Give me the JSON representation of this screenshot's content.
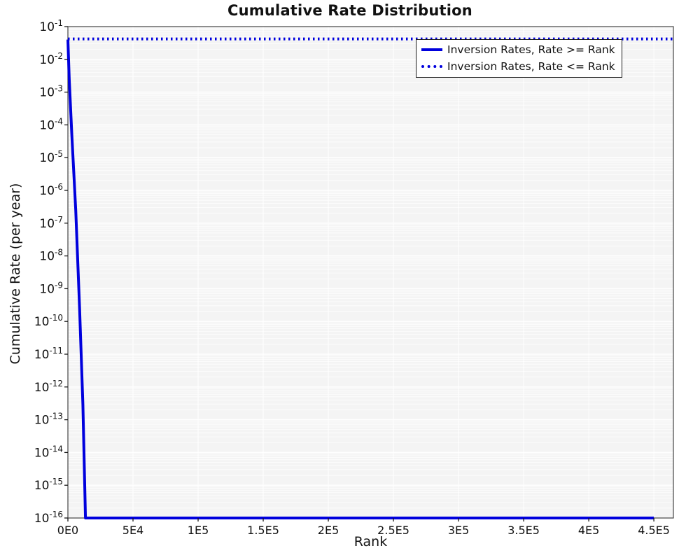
{
  "chart_data": {
    "type": "line",
    "title": "Cumulative Rate Distribution",
    "xlabel": "Rank",
    "ylabel": "Cumulative Rate (per year)",
    "x_axis": {
      "min": 0,
      "max": 465000,
      "ticks": [
        {
          "value": 0,
          "label": "0E0"
        },
        {
          "value": 50000,
          "label": "5E4"
        },
        {
          "value": 100000,
          "label": "1E5"
        },
        {
          "value": 150000,
          "label": "1.5E5"
        },
        {
          "value": 200000,
          "label": "2E5"
        },
        {
          "value": 250000,
          "label": "2.5E5"
        },
        {
          "value": 300000,
          "label": "3E5"
        },
        {
          "value": 350000,
          "label": "3.5E5"
        },
        {
          "value": 400000,
          "label": "4E5"
        },
        {
          "value": 450000,
          "label": "4.5E5"
        }
      ]
    },
    "y_axis": {
      "scale": "log10",
      "max_exp": -1,
      "min_exp": -16,
      "tick_base": "10"
    },
    "series": [
      {
        "name": "Inversion Rates, Rate >= Rank",
        "style": "solid",
        "color": "#0000dd",
        "points": [
          [
            0,
            0.04
          ],
          [
            1000,
            0.0025
          ],
          [
            3000,
            5e-05
          ],
          [
            6000,
            2.5e-07
          ],
          [
            9000,
            2.5e-10
          ],
          [
            11500,
            3e-13
          ],
          [
            13500,
            1e-16
          ],
          [
            450000,
            1e-16
          ]
        ]
      },
      {
        "name": "Inversion Rates, Rate <= Rank",
        "style": "dotted",
        "color": "#0000dd",
        "points": [
          [
            0,
            0.042
          ],
          [
            465000,
            0.042
          ]
        ]
      }
    ],
    "layout_hints": {
      "plot_bg": "#f4f4f4",
      "grid_color": "#ffffff",
      "frame_color": "#444444",
      "legend_position": "top-right",
      "grid": "on"
    }
  }
}
